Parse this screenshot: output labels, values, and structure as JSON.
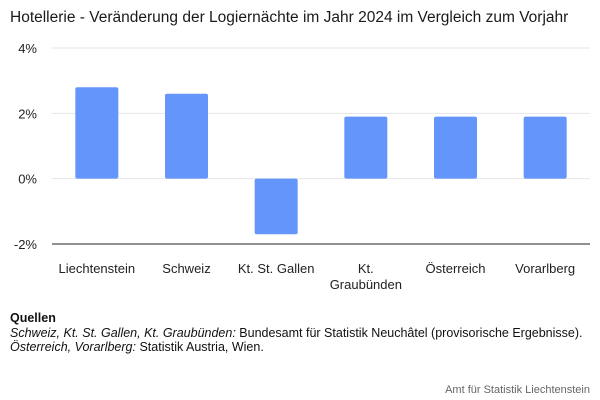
{
  "chart_data": {
    "type": "bar",
    "title": "Hotellerie - Veränderung der Logiernächte im Jahr 2024 im Vergleich zum Vorjahr",
    "categories": [
      "Liechtenstein",
      "Schweiz",
      "Kt. St. Gallen",
      "Kt. Graubünden",
      "Österreich",
      "Vorarlberg"
    ],
    "category_lines": [
      [
        "Liechtenstein"
      ],
      [
        "Schweiz"
      ],
      [
        "Kt. St. Gallen"
      ],
      [
        "Kt.",
        "Graubünden"
      ],
      [
        "Österreich"
      ],
      [
        "Vorarlberg"
      ]
    ],
    "values": [
      2.8,
      2.6,
      -1.7,
      1.9,
      1.9,
      1.9
    ],
    "unit": "%",
    "ylim": [
      -2,
      4
    ],
    "yticks": [
      -2,
      0,
      2,
      4
    ],
    "ytick_labels": [
      "-2%",
      "0%",
      "2%",
      "4%"
    ],
    "xlabel": "",
    "ylabel": "",
    "grid": true,
    "bar_color": "#6495fb",
    "grid_color": "#e6e6e6",
    "axis_color": "#222222"
  },
  "sources": {
    "heading": "Quellen",
    "line1_italic": "Schweiz, Kt. St. Gallen, Kt. Graubünden:",
    "line1_text": " Bundesamt für Statistik Neuchâtel (provisorische Ergebnisse).",
    "line2_italic": "Österreich, Vorarlberg:",
    "line2_text": " Statistik Austria, Wien."
  },
  "footer": "Amt für Statistik Liechtenstein"
}
